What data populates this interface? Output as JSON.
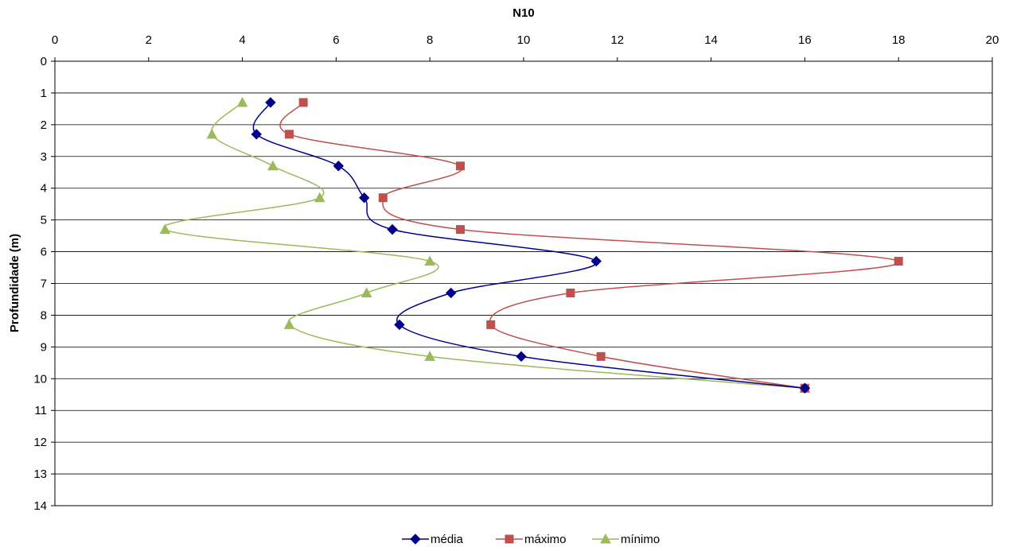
{
  "chart_data": {
    "type": "line",
    "title": "",
    "xlabel": "N10",
    "ylabel": "Profundidade (m)",
    "x_axis_position": "top",
    "y_axis_inverted": true,
    "xlim": [
      0,
      20
    ],
    "ylim": [
      0,
      14
    ],
    "xticks": [
      0,
      2,
      4,
      6,
      8,
      10,
      12,
      14,
      16,
      18,
      20
    ],
    "yticks": [
      0,
      1,
      2,
      3,
      4,
      5,
      6,
      7,
      8,
      9,
      10,
      11,
      12,
      13,
      14
    ],
    "grid": "horizontal",
    "legend_position": "bottom",
    "depths": [
      1.3,
      2.3,
      3.3,
      4.3,
      5.3,
      6.3,
      7.3,
      8.3,
      9.3,
      10.3
    ],
    "series": [
      {
        "name": "média",
        "color": "#00008B",
        "marker": "diamond",
        "values": [
          4.6,
          4.3,
          6.05,
          6.6,
          7.2,
          11.55,
          8.45,
          7.35,
          9.95,
          16
        ]
      },
      {
        "name": "máximo",
        "color": "#C0504D",
        "marker": "square",
        "values": [
          5.3,
          5.0,
          8.65,
          7.0,
          8.65,
          18.0,
          11.0,
          9.3,
          11.65,
          16
        ]
      },
      {
        "name": "mínimo",
        "color": "#9BBB59",
        "marker": "triangle",
        "values": [
          4.0,
          3.35,
          4.65,
          5.65,
          2.35,
          8.0,
          6.65,
          5.0,
          8.0,
          16
        ]
      }
    ]
  }
}
